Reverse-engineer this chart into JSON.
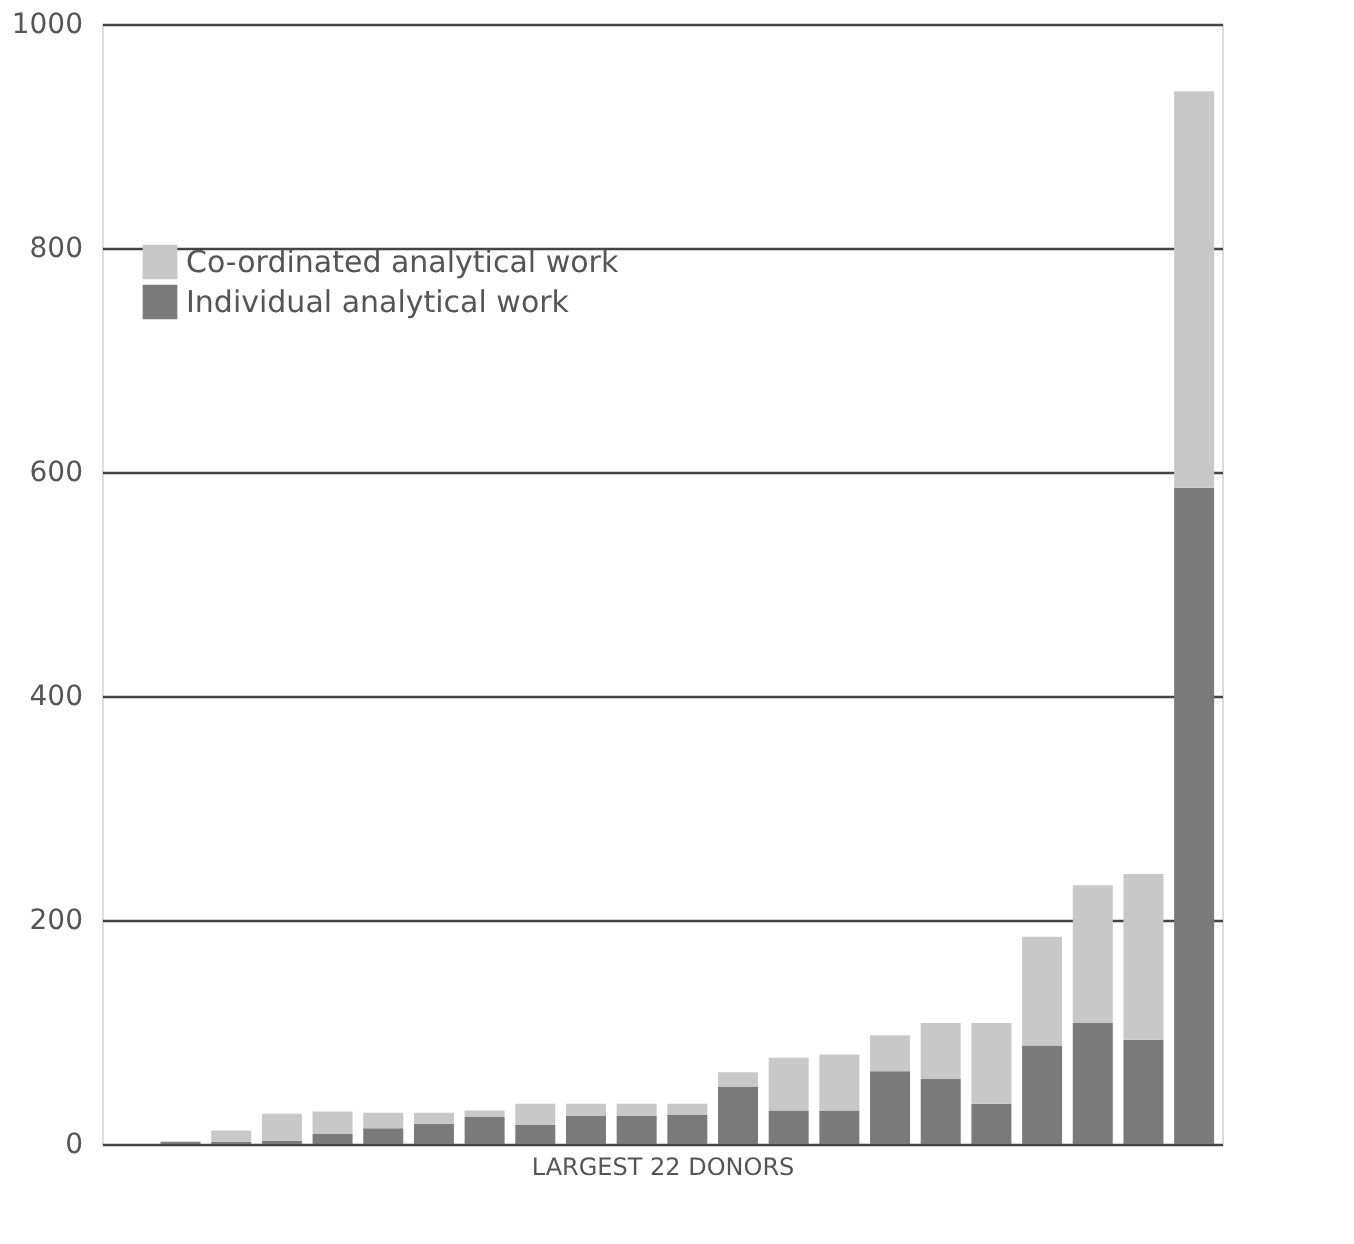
{
  "chart_data": {
    "type": "bar",
    "stacked": true,
    "xlabel": "LARGEST 22 DONORS",
    "categories": [
      null,
      null,
      null,
      null,
      null,
      null,
      null,
      null,
      null,
      null,
      null,
      null,
      null,
      null,
      null,
      null,
      null,
      null,
      null,
      null,
      null,
      null
    ],
    "series": [
      {
        "name": "Individual analytical work",
        "color": "#7a7a7a",
        "values": [
          null,
          2,
          2,
          3,
          9,
          14,
          18,
          24,
          17,
          25,
          25,
          26,
          51,
          30,
          30,
          65,
          58,
          36,
          88,
          108,
          93,
          586
        ]
      },
      {
        "name": "Co-ordinated analytical work",
        "color": "#c8c8c8",
        "values": [
          null,
          null,
          10,
          24,
          20,
          14,
          10,
          6,
          19,
          11,
          11,
          10,
          13,
          47,
          50,
          32,
          50,
          72,
          97,
          123,
          148,
          354
        ]
      }
    ],
    "ylim": [
      0,
      1000
    ],
    "yticks": [
      0,
      200,
      400,
      600,
      800,
      1000
    ],
    "grid": "y",
    "legend": "top left"
  }
}
